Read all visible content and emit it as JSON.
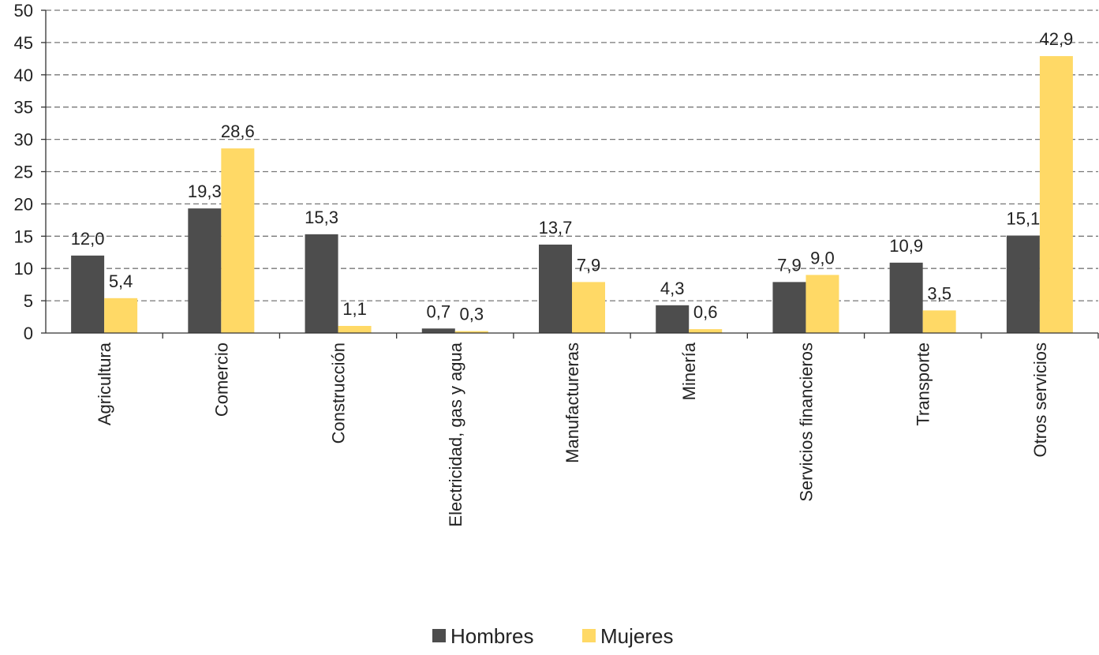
{
  "chart_data": {
    "type": "bar",
    "title": "",
    "xlabel": "",
    "ylabel": "",
    "ylim": [
      0,
      50
    ],
    "yticks": [
      "0",
      "5",
      "10",
      "15",
      "20",
      "25",
      "30",
      "35",
      "40",
      "45",
      "50"
    ],
    "grid": true,
    "legend_position": "bottom",
    "categories": [
      "Agricultura",
      "Comercio",
      "Construcción",
      "Electricidad, gas y agua",
      "Manufactureras",
      "Minería",
      "Servicios financieros",
      "Transporte",
      "Otros servicios"
    ],
    "series": [
      {
        "name": "Hombres",
        "color": "#4d4d4d",
        "values": [
          12.0,
          19.3,
          15.3,
          0.7,
          13.7,
          4.3,
          7.9,
          10.9,
          15.1
        ],
        "labels": [
          "12,0",
          "19,3",
          "15,3",
          "0,7",
          "13,7",
          "4,3",
          "7,9",
          "10,9",
          "15,1"
        ]
      },
      {
        "name": "Mujeres",
        "color": "#ffd966",
        "values": [
          5.4,
          28.6,
          1.1,
          0.3,
          7.9,
          0.6,
          9.0,
          3.5,
          42.9
        ],
        "labels": [
          "5,4",
          "28,6",
          "1,1",
          "0,3",
          "7,9",
          "0,6",
          "9,0",
          "3,5",
          "42,9"
        ]
      }
    ]
  }
}
